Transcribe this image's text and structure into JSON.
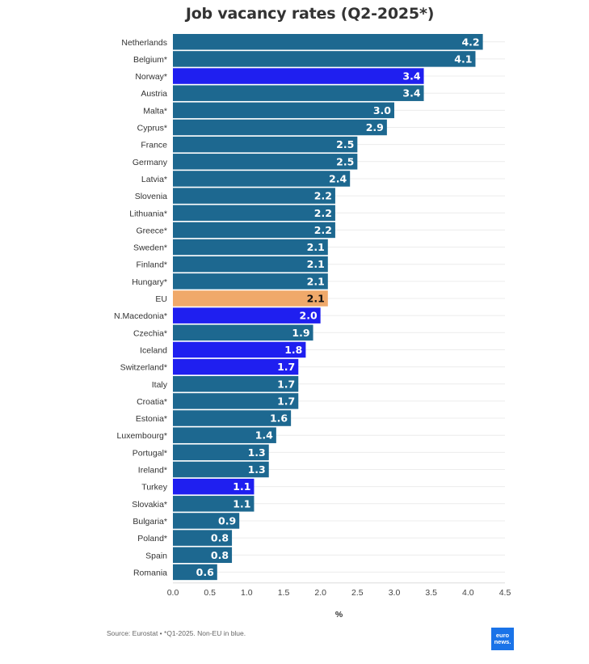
{
  "chart_data": {
    "type": "bar",
    "orientation": "horizontal",
    "title": "Job vacancy rates (Q2-2025*)",
    "xlabel": "%",
    "ylabel": "",
    "xlim": [
      0,
      4.5
    ],
    "xticks": [
      "0.0",
      "0.5",
      "1.0",
      "1.5",
      "2.0",
      "2.5",
      "3.0",
      "3.5",
      "4.0",
      "4.5"
    ],
    "grid": true,
    "colors": {
      "eu_member": "#1d6890",
      "non_eu": "#1f1ff0",
      "eu_average": "#f0a96a"
    },
    "categories": [
      "Netherlands",
      "Belgium*",
      "Norway*",
      "Austria",
      "Malta*",
      "Cyprus*",
      "France",
      "Germany",
      "Latvia*",
      "Slovenia",
      "Lithuania*",
      "Greece*",
      "Sweden*",
      "Finland*",
      "Hungary*",
      "EU",
      "N.Macedonia*",
      "Czechia*",
      "Iceland",
      "Switzerland*",
      "Italy",
      "Croatia*",
      "Estonia*",
      "Luxembourg*",
      "Portugal*",
      "Ireland*",
      "Turkey",
      "Slovakia*",
      "Bulgaria*",
      "Poland*",
      "Spain",
      "Romania"
    ],
    "values": [
      4.2,
      4.1,
      3.4,
      3.4,
      3.0,
      2.9,
      2.5,
      2.5,
      2.4,
      2.2,
      2.2,
      2.2,
      2.1,
      2.1,
      2.1,
      2.1,
      2.0,
      1.9,
      1.8,
      1.7,
      1.7,
      1.7,
      1.6,
      1.4,
      1.3,
      1.3,
      1.1,
      1.1,
      0.9,
      0.8,
      0.8,
      0.6
    ],
    "labels": [
      "4.2",
      "4.1",
      "3.4",
      "3.4",
      "3.0",
      "2.9",
      "2.5",
      "2.5",
      "2.4",
      "2.2",
      "2.2",
      "2.2",
      "2.1",
      "2.1",
      "2.1",
      "2.1",
      "2.0",
      "1.9",
      "1.8",
      "1.7",
      "1.7",
      "1.7",
      "1.6",
      "1.4",
      "1.3",
      "1.3",
      "1.1",
      "1.1",
      "0.9",
      "0.8",
      "0.8",
      "0.6"
    ],
    "groups": [
      "eu",
      "eu",
      "non_eu",
      "eu",
      "eu",
      "eu",
      "eu",
      "eu",
      "eu",
      "eu",
      "eu",
      "eu",
      "eu",
      "eu",
      "eu",
      "eu_average",
      "non_eu",
      "eu",
      "non_eu",
      "non_eu",
      "eu",
      "eu",
      "eu",
      "eu",
      "eu",
      "eu",
      "non_eu",
      "eu",
      "eu",
      "eu",
      "eu",
      "eu"
    ]
  },
  "footer": {
    "source": "Source: Eurostat • *Q1-2025. Non-EU in blue.",
    "logo_line1": "euro",
    "logo_line2": "news."
  }
}
